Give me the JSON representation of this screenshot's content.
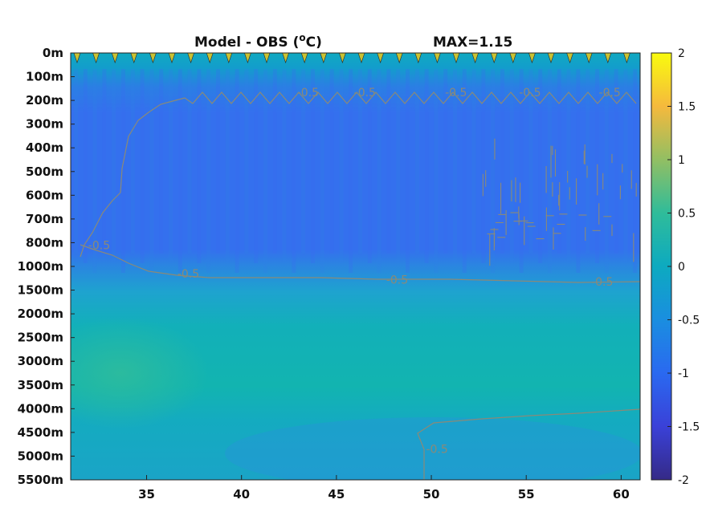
{
  "chart_data": {
    "type": "heatmap",
    "title_left": "Model - OBS (",
    "title_unit_sup": "o",
    "title_unit": "C)",
    "title_right": "MAX=1.15",
    "xlim": [
      31,
      61
    ],
    "x_ticks": [
      35,
      40,
      45,
      50,
      55,
      60
    ],
    "y_levels": [
      "0m",
      "100m",
      "200m",
      "300m",
      "400m",
      "500m",
      "600m",
      "700m",
      "800m",
      "1000m",
      "1500m",
      "2000m",
      "2500m",
      "3000m",
      "3500m",
      "4000m",
      "4500m",
      "5000m",
      "5500m"
    ],
    "y_axis_reversed": true,
    "colormap": "parula",
    "clim": [
      -2,
      2
    ],
    "colorbar_ticks": [
      "2",
      "1.5",
      "1",
      "0.5",
      "0",
      "-0.5",
      "-1",
      "-1.5",
      "-2"
    ],
    "contour_color": "#8a8a78",
    "contour_labels": [
      {
        "text": "-0.5",
        "x": 37.2,
        "level": 9.3
      },
      {
        "text": "-0.5",
        "x": 48.2,
        "level": 9.55
      },
      {
        "text": "-0.5",
        "x": 59.0,
        "level": 9.65
      },
      {
        "text": "-0.5",
        "x": 50.3,
        "level": 16.7
      },
      {
        "text": "-0.5",
        "x": 43.5,
        "level": 1.65
      },
      {
        "text": "-0.5",
        "x": 46.5,
        "level": 1.65
      },
      {
        "text": "-0.5",
        "x": 51.3,
        "level": 1.65
      },
      {
        "text": "-0.5",
        "x": 55.2,
        "level": 1.65
      },
      {
        "text": "-0.5",
        "x": 59.4,
        "level": 1.65
      },
      {
        "text": "-0.5",
        "x": 32.5,
        "level": 8.1
      }
    ],
    "field_description_levels": {
      "surface_0_100m": 0.05,
      "upper_200_800m": -0.95,
      "mid_1000_1500m": -0.45,
      "deep_2000_4000m": -0.2,
      "bottom_4500_5500m": -0.4
    }
  }
}
